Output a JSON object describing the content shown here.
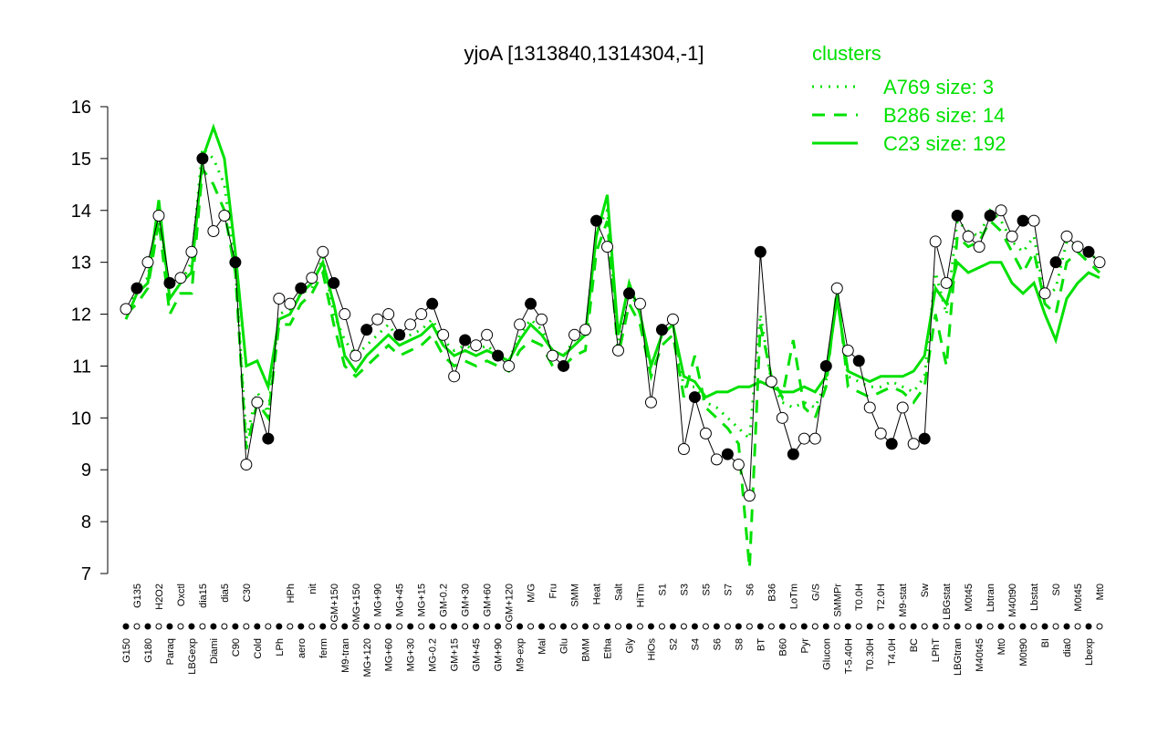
{
  "chart_data": {
    "type": "line",
    "title": "yjoA [1313840,1314304,-1]",
    "ylim": [
      7,
      16
    ],
    "yticks": [
      7,
      8,
      9,
      10,
      11,
      12,
      13,
      14,
      15,
      16
    ],
    "legend_title": "clusters",
    "categories": [
      "G150",
      "G135",
      "G180",
      "H2O2",
      "Paraq",
      "Oxctl",
      "LBGexp",
      "dia15",
      "Diami",
      "dia5",
      "C90",
      "C30",
      "Cold",
      null,
      "LPh",
      "HPh",
      "aero",
      "nit",
      "ferm",
      "GM+150",
      "M9-tran",
      "MG+150",
      "MG+120",
      "MG+90",
      "MG+60",
      "MG+45",
      "MG+30",
      "MG+15",
      "MG-0.2",
      "GM-0.2",
      "GM+15",
      "GM+30",
      "GM+45",
      "GM+60",
      "GM+90",
      "GM+120",
      "M9-exp",
      "M/G",
      "Mal",
      "Fru",
      "Glu",
      "SMM",
      "BMM",
      "Heat",
      "Etha",
      "Salt",
      "Gly",
      "HiTm",
      "HiOs",
      "S1",
      "S2",
      "S3",
      "S4",
      "S5",
      "S6",
      "S7",
      "S8",
      "S6",
      "BT",
      "B36",
      "B60",
      "LoTm",
      "Pyr",
      "G/S",
      "Glucon",
      "SMMPr",
      "T-5.40H",
      "T0.0H",
      "T0.30H",
      "T2.0H",
      "T4.0H",
      "M9-stat",
      "BC",
      "Sw",
      "LPhT",
      "LBGstat",
      "LBGtran",
      "M0t45",
      "M40t45",
      "Lbtran",
      "Mt0",
      "M40t90",
      "M0t90",
      "Lbstat",
      "BI",
      "S0",
      "dia0",
      "M0t45",
      "Lbexp",
      "Mt0"
    ],
    "values": [
      12.1,
      12.5,
      13.0,
      13.9,
      12.6,
      12.7,
      13.2,
      15.0,
      13.6,
      13.9,
      13.0,
      9.1,
      10.3,
      9.6,
      12.3,
      12.2,
      12.5,
      12.7,
      13.2,
      12.6,
      12.0,
      11.2,
      11.7,
      11.9,
      12.0,
      11.6,
      11.8,
      12.0,
      12.2,
      11.6,
      10.8,
      11.5,
      11.4,
      11.6,
      11.2,
      11.0,
      11.8,
      12.2,
      11.9,
      11.2,
      11.0,
      11.6,
      11.7,
      13.8,
      13.3,
      11.3,
      12.4,
      12.2,
      10.3,
      11.7,
      11.9,
      9.4,
      10.4,
      9.7,
      9.2,
      9.3,
      9.1,
      8.5,
      13.2,
      10.7,
      10.0,
      9.3,
      9.6,
      9.6,
      11.0,
      12.5,
      11.3,
      11.1,
      10.2,
      9.7,
      9.5,
      10.2,
      9.5,
      9.6,
      13.4,
      12.6,
      13.9,
      13.5,
      13.3,
      13.9,
      14.0,
      13.5,
      13.8,
      13.8,
      12.4,
      13.0,
      13.5,
      13.3,
      13.2,
      13.0
    ],
    "series": [
      {
        "name": "A769 size: 3",
        "color": "#00e000",
        "style": "dotted",
        "values": [
          12.0,
          12.5,
          12.7,
          14.0,
          12.3,
          12.6,
          13.0,
          15.2,
          15.0,
          14.5,
          12.9,
          9.6,
          10.5,
          10.1,
          12.0,
          12.1,
          12.4,
          12.5,
          13.1,
          12.0,
          11.5,
          11.2,
          11.4,
          11.6,
          11.8,
          11.5,
          11.6,
          11.7,
          11.9,
          11.5,
          11.3,
          11.4,
          11.3,
          11.4,
          11.2,
          11.1,
          11.6,
          11.9,
          11.7,
          11.3,
          11.2,
          11.5,
          11.6,
          13.6,
          14.0,
          11.5,
          12.5,
          12.0,
          11.0,
          11.6,
          11.8,
          10.6,
          10.6,
          10.3,
          10.2,
          10.0,
          9.8,
          9.6,
          12.0,
          10.7,
          10.3,
          10.2,
          10.3,
          10.2,
          10.7,
          12.4,
          10.8,
          10.7,
          10.6,
          10.6,
          10.7,
          10.6,
          10.5,
          10.8,
          12.8,
          12.0,
          13.8,
          13.6,
          13.5,
          14.0,
          13.8,
          13.4,
          13.2,
          13.5,
          12.3,
          12.5,
          13.4,
          13.3,
          13.2,
          13.0
        ]
      },
      {
        "name": "B286 size: 14",
        "color": "#00e000",
        "style": "dashed",
        "values": [
          12.0,
          12.2,
          12.5,
          13.8,
          12.0,
          12.4,
          12.4,
          14.8,
          14.5,
          14.0,
          12.8,
          9.4,
          10.3,
          10.0,
          11.8,
          11.8,
          12.2,
          12.4,
          12.8,
          11.8,
          11.0,
          10.8,
          11.0,
          11.2,
          11.4,
          11.2,
          11.3,
          11.4,
          11.6,
          11.2,
          11.0,
          11.1,
          11.0,
          11.1,
          11.0,
          10.9,
          11.3,
          11.5,
          11.4,
          11.0,
          11.0,
          11.2,
          11.3,
          13.2,
          13.8,
          11.2,
          12.2,
          11.8,
          10.8,
          11.4,
          11.6,
          10.4,
          11.2,
          10.2,
          10.0,
          9.8,
          9.5,
          7.1,
          11.8,
          10.8,
          10.4,
          11.5,
          10.2,
          10.0,
          10.6,
          12.5,
          10.6,
          10.5,
          10.4,
          10.5,
          10.6,
          10.5,
          10.3,
          10.6,
          12.0,
          11.0,
          13.5,
          13.3,
          13.4,
          13.8,
          13.6,
          13.2,
          12.8,
          13.2,
          12.2,
          12.0,
          13.0,
          13.2,
          13.0,
          12.8
        ]
      },
      {
        "name": "C23 size: 192",
        "color": "#00e000",
        "style": "solid",
        "values": [
          11.9,
          12.4,
          12.6,
          14.2,
          12.3,
          12.6,
          12.8,
          15.0,
          15.6,
          15.0,
          13.2,
          11.0,
          11.1,
          10.6,
          11.9,
          12.0,
          12.4,
          12.6,
          13.0,
          12.2,
          11.2,
          10.9,
          11.2,
          11.4,
          11.6,
          11.4,
          11.5,
          11.6,
          11.8,
          11.4,
          11.2,
          11.3,
          11.2,
          11.3,
          11.2,
          11.1,
          11.5,
          11.8,
          11.6,
          11.3,
          11.2,
          11.4,
          11.6,
          13.5,
          14.3,
          11.6,
          12.6,
          12.0,
          11.0,
          11.6,
          11.8,
          10.8,
          10.7,
          10.4,
          10.5,
          10.5,
          10.6,
          10.6,
          10.7,
          10.6,
          10.5,
          10.5,
          10.6,
          10.5,
          10.8,
          12.3,
          10.9,
          10.8,
          10.7,
          10.8,
          10.8,
          10.8,
          10.9,
          11.2,
          12.5,
          12.2,
          13.0,
          12.8,
          12.9,
          13.0,
          13.0,
          12.6,
          12.4,
          12.6,
          12.0,
          11.5,
          12.3,
          12.6,
          12.8,
          12.7
        ]
      }
    ]
  }
}
